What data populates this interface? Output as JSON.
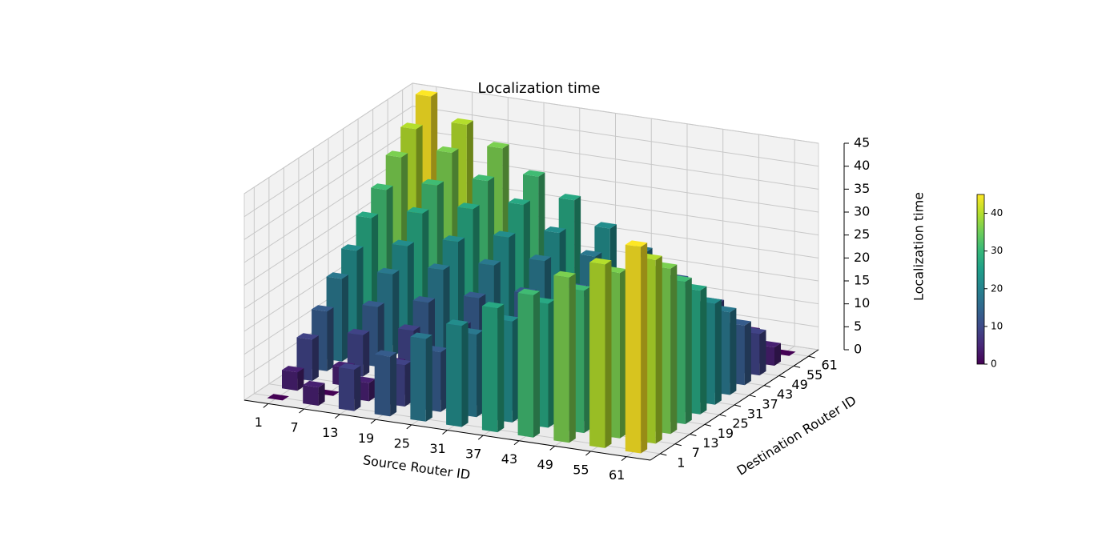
{
  "chart_data": {
    "type": "bar3d",
    "title": "Localization time",
    "xlabel": "Source Router ID",
    "ylabel": "Destination Router ID",
    "zlabel": "Localization time",
    "x": [
      1,
      7,
      13,
      19,
      25,
      31,
      37,
      43,
      49,
      55,
      61
    ],
    "y": [
      1,
      7,
      13,
      19,
      25,
      31,
      37,
      43,
      49,
      55,
      61
    ],
    "values": [
      [
        0,
        4,
        9,
        13,
        18,
        22,
        27,
        31,
        36,
        40,
        45
      ],
      [
        4,
        0,
        4,
        9,
        13,
        18,
        22,
        27,
        31,
        36,
        40
      ],
      [
        9,
        4,
        0,
        4,
        9,
        13,
        18,
        22,
        27,
        31,
        36
      ],
      [
        13,
        9,
        4,
        0,
        4,
        9,
        13,
        18,
        22,
        27,
        31
      ],
      [
        18,
        13,
        9,
        4,
        0,
        4,
        9,
        13,
        18,
        22,
        27
      ],
      [
        22,
        18,
        13,
        9,
        4,
        0,
        4,
        9,
        13,
        18,
        22
      ],
      [
        27,
        22,
        18,
        13,
        9,
        4,
        0,
        4,
        9,
        13,
        18
      ],
      [
        31,
        27,
        22,
        18,
        13,
        9,
        4,
        0,
        4,
        9,
        13
      ],
      [
        36,
        31,
        27,
        22,
        18,
        13,
        9,
        4,
        0,
        4,
        9
      ],
      [
        40,
        36,
        31,
        27,
        22,
        18,
        13,
        9,
        4,
        0,
        4
      ],
      [
        45,
        40,
        36,
        31,
        27,
        22,
        18,
        13,
        9,
        4,
        0
      ]
    ],
    "xlim": [
      -3,
      65
    ],
    "ylim": [
      -3,
      65
    ],
    "zlim": [
      0,
      45
    ],
    "xticks": [
      1,
      7,
      13,
      19,
      25,
      31,
      37,
      43,
      49,
      55,
      61
    ],
    "yticks": [
      1,
      7,
      13,
      19,
      25,
      31,
      37,
      43,
      49,
      55,
      61
    ],
    "zticks": [
      0,
      5,
      10,
      15,
      20,
      25,
      30,
      35,
      40,
      45
    ],
    "colormap": "viridis",
    "grid": true,
    "colorbar": {
      "lim": [
        0,
        45
      ],
      "ticks": [
        0,
        10,
        20,
        30,
        40
      ]
    }
  }
}
